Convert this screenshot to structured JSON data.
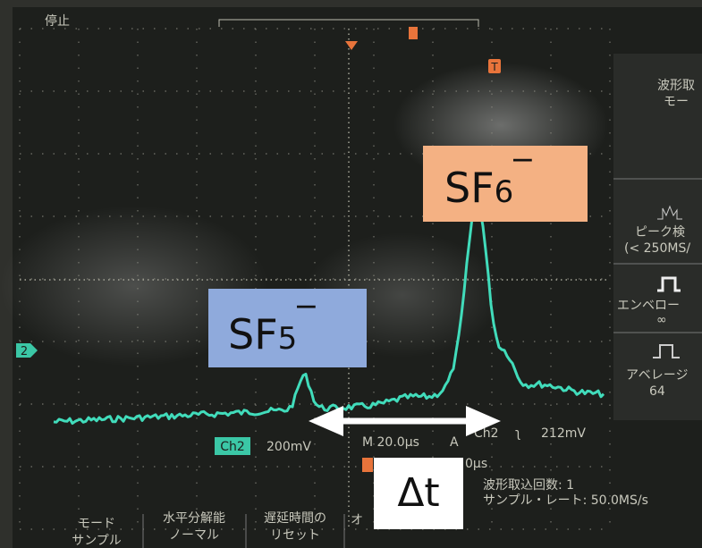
{
  "screen": {
    "status": "停止",
    "trigger_marker": "T",
    "channel_marker": "2",
    "readout": {
      "channel": "Ch2",
      "volts": "200mV",
      "time": "M 20.0µs",
      "mode": "A",
      "trigger_channel": "Ch2",
      "slope": "ʅ",
      "level": "212mV",
      "position": "0µs"
    },
    "acquisition": {
      "count": "波形取込回数:  1",
      "rate": "サンプル・レート:  50.0MS/s"
    }
  },
  "menu": {
    "title": [
      "波形取",
      "モー"
    ],
    "items": [
      {
        "label": [
          "ピーク検",
          "(< 250MS/"
        ]
      },
      {
        "label": [
          "エンベロー",
          "∞"
        ]
      },
      {
        "label": [
          "アベレージ",
          "64"
        ]
      }
    ]
  },
  "buttons": [
    {
      "label": [
        "モード",
        "サンプル"
      ]
    },
    {
      "label": [
        "水平分解能",
        "ノーマル"
      ]
    },
    {
      "label": [
        "遅延時間の",
        "リセット"
      ]
    },
    {
      "label": [
        "オ"
      ]
    }
  ],
  "annotations": {
    "peak_large": {
      "base": "SF",
      "index": "6",
      "charge": "‾"
    },
    "peak_small": {
      "base": "SF",
      "index": "5",
      "charge": "‾"
    },
    "delta": "Δt"
  }
}
